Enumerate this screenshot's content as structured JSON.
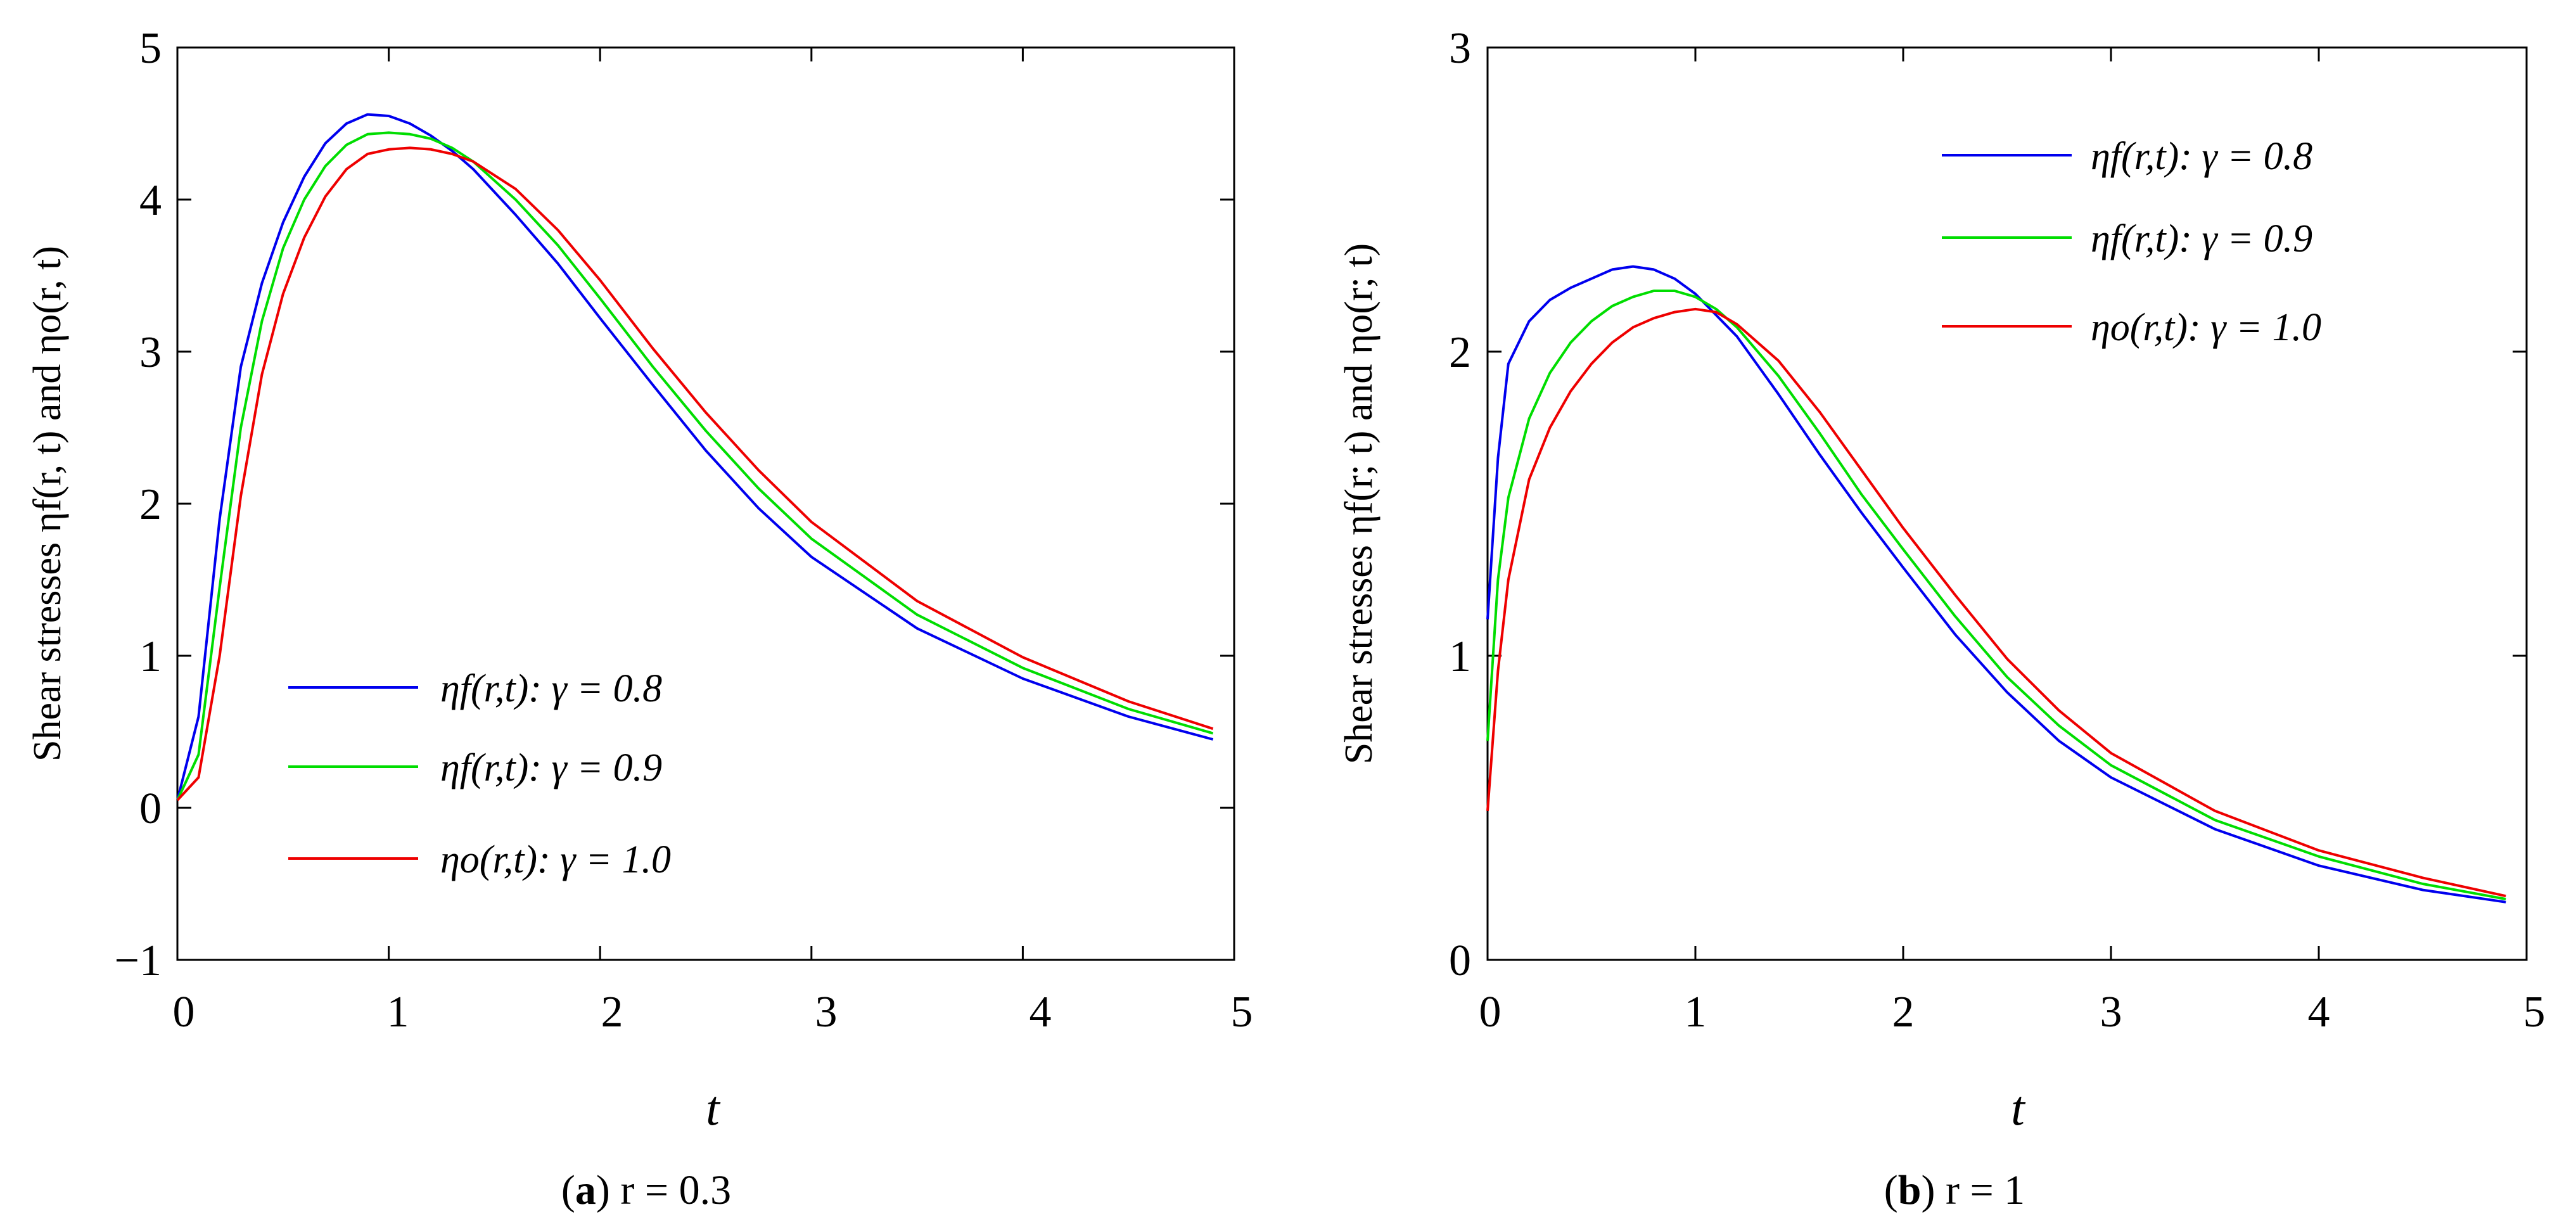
{
  "chart_data": [
    {
      "type": "line",
      "panel_label": "a",
      "caption": "r = 0.3",
      "xlabel": "t",
      "ylabel": "Shear stresses ηf(r, t) and ηo(r, t)",
      "xlim": [
        0,
        5
      ],
      "ylim": [
        -1,
        5
      ],
      "x_ticks": [
        "0",
        "1",
        "2",
        "3",
        "4",
        "5"
      ],
      "y_ticks": [
        "−1",
        "0",
        "1",
        "2",
        "3",
        "4",
        "5"
      ],
      "legend_position": "lower-left",
      "x": [
        0,
        0.1,
        0.2,
        0.3,
        0.4,
        0.5,
        0.6,
        0.7,
        0.8,
        0.9,
        1.0,
        1.1,
        1.2,
        1.3,
        1.4,
        1.6,
        1.8,
        2.0,
        2.25,
        2.5,
        2.75,
        3.0,
        3.5,
        4.0,
        4.5,
        4.9
      ],
      "series": [
        {
          "name": "ηf(r,t): γ = 0.8",
          "color": "#0000ee",
          "values": [
            0.05,
            0.6,
            1.9,
            2.9,
            3.45,
            3.85,
            4.15,
            4.37,
            4.5,
            4.56,
            4.55,
            4.5,
            4.42,
            4.32,
            4.2,
            3.9,
            3.58,
            3.22,
            2.78,
            2.35,
            1.97,
            1.65,
            1.18,
            0.85,
            0.6,
            0.45
          ]
        },
        {
          "name": "ηf(r,t): γ = 0.9",
          "color": "#00dd00",
          "values": [
            0.05,
            0.35,
            1.45,
            2.5,
            3.2,
            3.68,
            4.0,
            4.22,
            4.36,
            4.43,
            4.44,
            4.43,
            4.4,
            4.34,
            4.25,
            4.0,
            3.7,
            3.35,
            2.9,
            2.48,
            2.1,
            1.77,
            1.27,
            0.92,
            0.65,
            0.49
          ]
        },
        {
          "name": "ηo(r,t): γ = 1.0",
          "color": "#ee0000",
          "values": [
            0.05,
            0.2,
            1.0,
            2.05,
            2.85,
            3.38,
            3.75,
            4.02,
            4.2,
            4.3,
            4.33,
            4.34,
            4.33,
            4.3,
            4.25,
            4.07,
            3.8,
            3.47,
            3.02,
            2.6,
            2.22,
            1.88,
            1.36,
            0.99,
            0.7,
            0.52
          ]
        }
      ]
    },
    {
      "type": "line",
      "panel_label": "b",
      "caption": "r = 1",
      "xlabel": "t",
      "ylabel": "Shear stresses ηf(r; t) and ηo(r; t)",
      "xlim": [
        0,
        5
      ],
      "ylim": [
        0,
        3
      ],
      "x_ticks": [
        "0",
        "1",
        "2",
        "3",
        "4",
        "5"
      ],
      "y_ticks": [
        "0",
        "1",
        "2",
        "3"
      ],
      "legend_position": "top-right",
      "x": [
        0,
        0.05,
        0.1,
        0.2,
        0.3,
        0.4,
        0.5,
        0.6,
        0.7,
        0.8,
        0.9,
        1.0,
        1.1,
        1.2,
        1.4,
        1.6,
        1.8,
        2.0,
        2.25,
        2.5,
        2.75,
        3.0,
        3.5,
        4.0,
        4.5,
        4.9
      ],
      "series": [
        {
          "name": "ηf(r,t): γ = 0.8",
          "color": "#0000ee",
          "values": [
            1.12,
            1.65,
            1.96,
            2.1,
            2.17,
            2.21,
            2.24,
            2.27,
            2.28,
            2.27,
            2.24,
            2.19,
            2.12,
            2.05,
            1.86,
            1.66,
            1.47,
            1.29,
            1.07,
            0.88,
            0.72,
            0.6,
            0.43,
            0.31,
            0.23,
            0.19
          ]
        },
        {
          "name": "ηf(r,t): γ = 0.9",
          "color": "#00dd00",
          "values": [
            0.72,
            1.25,
            1.52,
            1.78,
            1.93,
            2.03,
            2.1,
            2.15,
            2.18,
            2.2,
            2.2,
            2.18,
            2.14,
            2.08,
            1.92,
            1.73,
            1.53,
            1.35,
            1.13,
            0.93,
            0.77,
            0.64,
            0.46,
            0.34,
            0.25,
            0.2
          ]
        },
        {
          "name": "ηo(r,t): γ = 1.0",
          "color": "#ee0000",
          "values": [
            0.49,
            0.95,
            1.25,
            1.58,
            1.75,
            1.87,
            1.96,
            2.03,
            2.08,
            2.11,
            2.13,
            2.14,
            2.13,
            2.09,
            1.97,
            1.8,
            1.61,
            1.42,
            1.2,
            0.99,
            0.82,
            0.68,
            0.49,
            0.36,
            0.27,
            0.21
          ]
        }
      ]
    }
  ]
}
